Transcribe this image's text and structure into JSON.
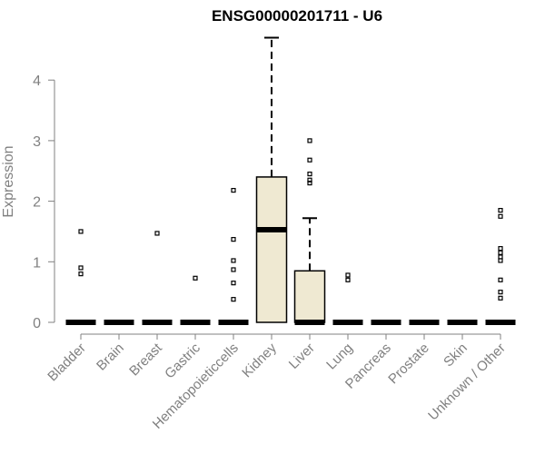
{
  "chart_data": {
    "type": "boxplot",
    "title": "ENSG00000201711 - U6",
    "ylabel": "Expression",
    "xlabel": "",
    "ylim": [
      0,
      4.7
    ],
    "yticks": [
      0,
      1,
      2,
      3,
      4
    ],
    "grid": false,
    "legend": "none",
    "box_fill": "#efe9d2",
    "line_color": "#000000",
    "axis_color": "#808080",
    "categories": [
      "Bladder",
      "Brain",
      "Breast",
      "Gastric",
      "Hematopoieticcells",
      "Kidney",
      "Liver",
      "Lung",
      "Pancreas",
      "Prostate",
      "Skin",
      "Unknown / Other"
    ],
    "boxes": [
      {
        "category": "Bladder",
        "q1": 0,
        "median": 0,
        "q3": 0,
        "whisker_low": 0,
        "whisker_high": 0,
        "outliers": [
          1.5,
          0.9,
          0.8
        ]
      },
      {
        "category": "Brain",
        "q1": 0,
        "median": 0,
        "q3": 0,
        "whisker_low": 0,
        "whisker_high": 0,
        "outliers": []
      },
      {
        "category": "Breast",
        "q1": 0,
        "median": 0,
        "q3": 0,
        "whisker_low": 0,
        "whisker_high": 0,
        "outliers": [
          1.47
        ]
      },
      {
        "category": "Gastric",
        "q1": 0,
        "median": 0,
        "q3": 0,
        "whisker_low": 0,
        "whisker_high": 0,
        "outliers": [
          0.73
        ]
      },
      {
        "category": "Hematopoieticcells",
        "q1": 0,
        "median": 0,
        "q3": 0,
        "whisker_low": 0,
        "whisker_high": 0,
        "outliers": [
          2.18,
          1.37,
          1.02,
          0.87,
          0.65,
          0.38
        ]
      },
      {
        "category": "Kidney",
        "q1": 0,
        "median": 1.53,
        "q3": 2.4,
        "whisker_low": 0,
        "whisker_high": 4.7,
        "outliers": []
      },
      {
        "category": "Liver",
        "q1": 0,
        "median": 0,
        "q3": 0.85,
        "whisker_low": 0,
        "whisker_high": 1.72,
        "outliers": [
          3.0,
          2.68,
          2.45,
          2.35,
          2.3
        ]
      },
      {
        "category": "Lung",
        "q1": 0,
        "median": 0,
        "q3": 0,
        "whisker_low": 0,
        "whisker_high": 0,
        "outliers": [
          0.78,
          0.7
        ]
      },
      {
        "category": "Pancreas",
        "q1": 0,
        "median": 0,
        "q3": 0,
        "whisker_low": 0,
        "whisker_high": 0,
        "outliers": []
      },
      {
        "category": "Prostate",
        "q1": 0,
        "median": 0,
        "q3": 0,
        "whisker_low": 0,
        "whisker_high": 0,
        "outliers": []
      },
      {
        "category": "Skin",
        "q1": 0,
        "median": 0,
        "q3": 0,
        "whisker_low": 0,
        "whisker_high": 0,
        "outliers": []
      },
      {
        "category": "Unknown / Other",
        "q1": 0,
        "median": 0,
        "q3": 0,
        "whisker_low": 0,
        "whisker_high": 0,
        "outliers": [
          1.85,
          1.75,
          1.22,
          1.15,
          1.08,
          1.02,
          0.7,
          0.5,
          0.4
        ]
      }
    ]
  }
}
